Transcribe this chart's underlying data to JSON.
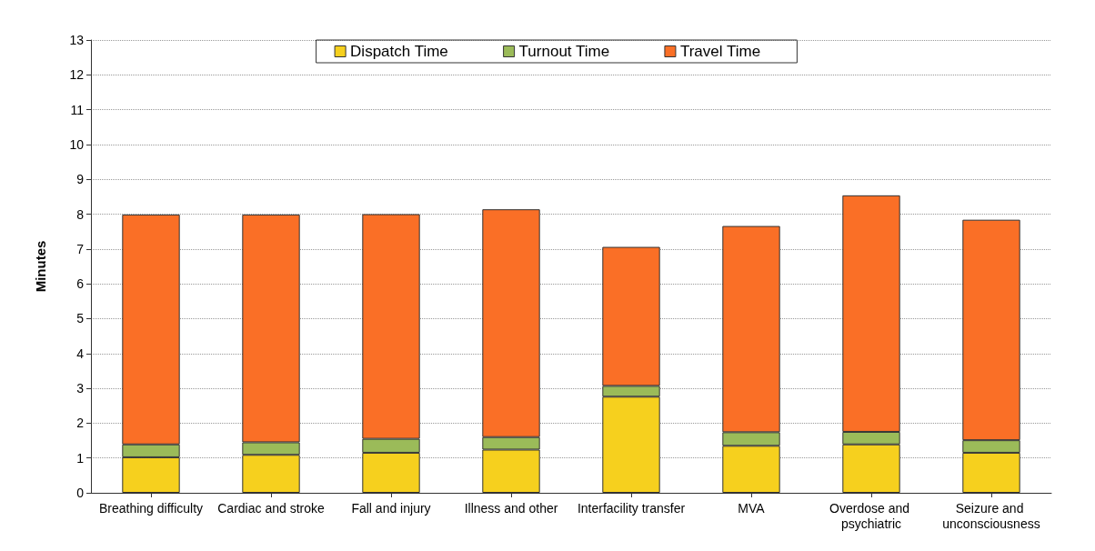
{
  "chart_data": {
    "type": "bar",
    "stacked": true,
    "ylabel": "Minutes",
    "categories": [
      "Breathing difficulty",
      "Cardiac and stroke",
      "Fall and injury",
      "Illness and other",
      "Interfacility transfer",
      "MVA",
      "Overdose and psychiatric",
      "Seizure and unconsciousness"
    ],
    "series": [
      {
        "name": "Dispatch Time",
        "color": "#f6d01e",
        "values": [
          1.02,
          1.09,
          1.15,
          1.24,
          2.76,
          1.35,
          1.39,
          1.15
        ]
      },
      {
        "name": "Turnout Time",
        "color": "#9bbb59",
        "values": [
          0.37,
          0.36,
          0.4,
          0.36,
          0.31,
          0.39,
          0.36,
          0.36
        ]
      },
      {
        "name": "Travel Time",
        "color": "#fa6f26",
        "values": [
          6.6,
          6.54,
          6.45,
          6.54,
          3.99,
          5.92,
          6.79,
          6.33
        ]
      }
    ],
    "ylim": [
      0,
      13
    ],
    "yticks": [
      0,
      1,
      2,
      3,
      4,
      5,
      6,
      7,
      8,
      9,
      10,
      11,
      12,
      13
    ],
    "grid": "y",
    "legend": "top"
  }
}
